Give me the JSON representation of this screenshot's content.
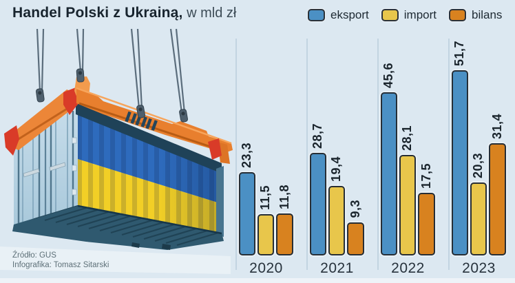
{
  "header": {
    "title_bold": "Handel Polski z Ukrainą,",
    "title_suffix": " w mld zł"
  },
  "legend": {
    "items": [
      {
        "label": "eksport",
        "color": "#4b90c4"
      },
      {
        "label": "import",
        "color": "#e8c64b"
      },
      {
        "label": "bilans",
        "color": "#d8821f"
      }
    ]
  },
  "footer": {
    "source": "Źródło: GUS",
    "credit": "Infografika: Tomasz Sitarski"
  },
  "illustration": {
    "name": "cargo-container-ukraine-flag",
    "description": "Shipping container painted in Ukrainian flag colors hanging from an orange crane spreader on four cables"
  },
  "chart_data": {
    "type": "bar",
    "title": "Handel Polski z Ukrainą, w mld zł",
    "unit": "mld zł",
    "categories": [
      "2020",
      "2021",
      "2022",
      "2023"
    ],
    "series": [
      {
        "name": "eksport",
        "color": "#4b90c4",
        "values": [
          23.3,
          28.7,
          45.6,
          51.7
        ],
        "labels": [
          "23,3",
          "28,7",
          "45,6",
          "51,7"
        ]
      },
      {
        "name": "import",
        "color": "#e8c64b",
        "values": [
          11.5,
          19.4,
          28.1,
          20.3
        ],
        "labels": [
          "11,5",
          "19,4",
          "28,1",
          "20,3"
        ]
      },
      {
        "name": "bilans",
        "color": "#d8821f",
        "values": [
          11.8,
          9.3,
          17.5,
          31.4
        ],
        "labels": [
          "11,8",
          "9,3",
          "17,5",
          "31,4"
        ]
      }
    ],
    "ylim": [
      0,
      55
    ],
    "grid": false,
    "legend_position": "top-right",
    "value_label_style": "rotated-90-bold",
    "background": "#dce8f1"
  }
}
